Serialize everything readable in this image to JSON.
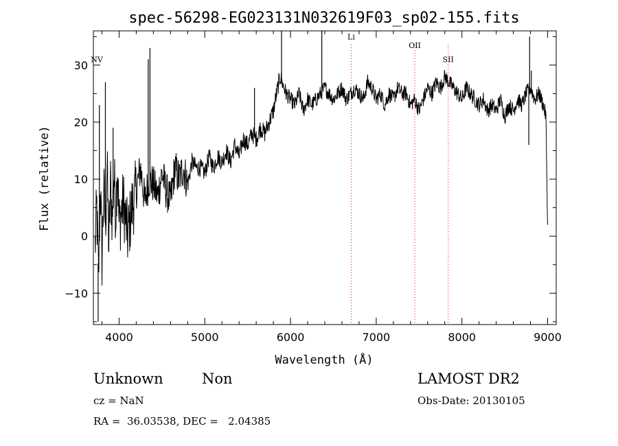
{
  "chart_data": {
    "type": "line",
    "title": "spec-56298-EG023131N032619F03_sp02-155.fits",
    "xlabel": "Wavelength (Å)",
    "ylabel": "Flux (relative)",
    "xlim": [
      3700,
      9100
    ],
    "ylim": [
      -15.5,
      36
    ],
    "xticks": [
      4000,
      5000,
      6000,
      7000,
      8000,
      9000
    ],
    "yticks": [
      -10,
      0,
      10,
      20,
      30
    ],
    "xtick_labels": [
      "4000",
      "5000",
      "6000",
      "7000",
      "8000",
      "9000"
    ],
    "ytick_labels": [
      "−10",
      "0",
      "10",
      "20",
      "30"
    ],
    "grid": false,
    "line_color": "#000000",
    "marker_color": "#ff0000",
    "lines": [
      {
        "label": "NV",
        "x": 3740,
        "label_y": 30.5,
        "show_line": false
      },
      {
        "label": "Li",
        "x": 6708,
        "label_y": 34.5,
        "show_line": true
      },
      {
        "label": "OII",
        "x": 7450,
        "label_y": 33,
        "show_line": true
      },
      {
        "label": "SII",
        "x": 7840,
        "label_y": 30.5,
        "show_line": true
      }
    ],
    "series": [
      {
        "x": [
          3720,
          3740,
          3760,
          3780,
          3800,
          3820,
          3840,
          3860,
          3880,
          3900,
          3920,
          3940,
          3960,
          3980,
          4000,
          4050,
          4100,
          4150,
          4200,
          4250,
          4300,
          4350,
          4400,
          4450,
          4500,
          4550,
          4600,
          4650,
          4700,
          4750,
          4800,
          4850,
          4900,
          4950,
          5000,
          5050,
          5100,
          5150,
          5200,
          5250,
          5300,
          5350,
          5400,
          5450,
          5500,
          5550,
          5600,
          5650,
          5700,
          5750,
          5800,
          5850,
          5880,
          5900,
          5950,
          6000,
          6050,
          6100,
          6150,
          6200,
          6250,
          6300,
          6350,
          6400,
          6450,
          6500,
          6550,
          6600,
          6650,
          6700,
          6750,
          6800,
          6850,
          6900,
          6950,
          7000,
          7050,
          7100,
          7150,
          7200,
          7250,
          7300,
          7350,
          7400,
          7450,
          7500,
          7550,
          7600,
          7650,
          7700,
          7750,
          7800,
          7850,
          7900,
          7950,
          8000,
          8050,
          8100,
          8150,
          8200,
          8250,
          8300,
          8350,
          8400,
          8450,
          8500,
          8550,
          8600,
          8650,
          8700,
          8750,
          8800,
          8850,
          8900,
          8950,
          8980,
          9000
        ],
        "y": [
          -2,
          5,
          -8,
          10,
          -4,
          8,
          2,
          12,
          -2,
          9,
          3,
          11,
          4,
          13,
          2,
          6,
          0,
          5,
          8,
          12,
          6,
          10,
          9,
          7,
          11,
          8,
          6,
          12,
          10,
          12,
          9,
          13,
          12,
          12,
          11,
          14,
          12,
          14,
          13,
          15,
          13,
          16,
          14,
          17,
          16,
          18,
          17,
          19,
          18,
          20,
          22,
          26,
          28,
          27,
          25,
          24,
          23,
          25,
          22,
          24,
          23,
          24,
          25,
          26,
          25,
          24,
          25,
          26,
          24,
          25,
          26,
          25,
          24,
          27,
          26,
          24,
          25,
          23,
          25,
          24,
          26,
          25,
          25,
          23,
          24,
          22,
          24,
          26,
          25,
          27,
          26,
          28,
          27,
          26,
          25,
          24,
          26,
          25,
          24,
          23,
          24,
          22,
          23,
          22,
          24,
          21,
          23,
          22,
          24,
          23,
          25,
          26,
          24,
          25,
          23,
          21,
          2
        ],
        "spikes": [
          {
            "x": 3755,
            "y": -15
          },
          {
            "x": 3770,
            "y": 23
          },
          {
            "x": 3840,
            "y": 27
          },
          {
            "x": 3930,
            "y": 19
          },
          {
            "x": 4340,
            "y": 31
          },
          {
            "x": 4360,
            "y": 33
          },
          {
            "x": 5580,
            "y": 26
          },
          {
            "x": 5895,
            "y": 36
          },
          {
            "x": 6365,
            "y": 36
          },
          {
            "x": 8790,
            "y": 35
          },
          {
            "x": 8810,
            "y": 29
          },
          {
            "x": 8780,
            "y": 16
          }
        ]
      }
    ]
  },
  "info": {
    "object_class": "Unknown",
    "subclass": "Non",
    "survey": "LAMOST DR2",
    "cz": "cz = NaN",
    "obs_date": "Obs-Date: 20130105",
    "coords": "RA =  36.03538, DEC =   2.04385"
  }
}
